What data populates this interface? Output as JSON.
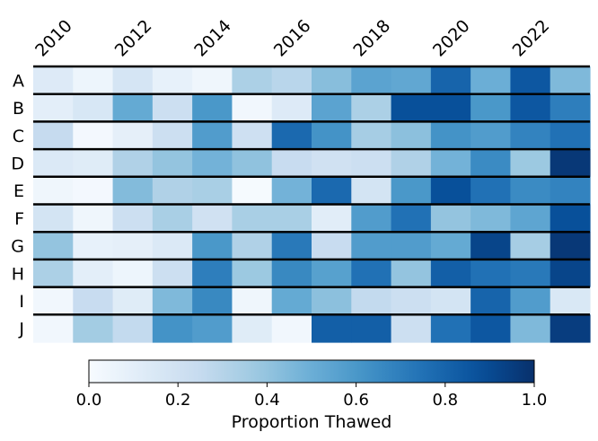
{
  "chart_data": {
    "type": "heatmap",
    "title": "",
    "x_tick_labels": [
      "2010",
      "2012",
      "2014",
      "2016",
      "2018",
      "2020",
      "2022"
    ],
    "x": [
      2010,
      2011,
      2012,
      2013,
      2014,
      2015,
      2016,
      2017,
      2018,
      2019,
      2020,
      2021,
      2022,
      2023
    ],
    "y": [
      "A",
      "B",
      "C",
      "D",
      "E",
      "F",
      "G",
      "H",
      "I",
      "J"
    ],
    "values": [
      [
        0.13,
        0.05,
        0.17,
        0.08,
        0.04,
        0.33,
        0.29,
        0.43,
        0.55,
        0.53,
        0.8,
        0.5,
        0.85,
        0.45
      ],
      [
        0.1,
        0.16,
        0.52,
        0.22,
        0.6,
        0.03,
        0.13,
        0.55,
        0.33,
        0.88,
        0.88,
        0.6,
        0.85,
        0.7
      ],
      [
        0.25,
        0.02,
        0.09,
        0.22,
        0.58,
        0.21,
        0.78,
        0.62,
        0.35,
        0.42,
        0.62,
        0.58,
        0.68,
        0.75
      ],
      [
        0.14,
        0.12,
        0.32,
        0.4,
        0.48,
        0.41,
        0.24,
        0.2,
        0.22,
        0.32,
        0.48,
        0.65,
        0.38,
        0.97
      ],
      [
        0.04,
        0.02,
        0.44,
        0.32,
        0.34,
        0.01,
        0.48,
        0.78,
        0.18,
        0.6,
        0.88,
        0.75,
        0.65,
        0.68
      ],
      [
        0.18,
        0.04,
        0.22,
        0.34,
        0.2,
        0.34,
        0.34,
        0.11,
        0.58,
        0.75,
        0.4,
        0.45,
        0.54,
        0.88
      ],
      [
        0.4,
        0.08,
        0.09,
        0.14,
        0.6,
        0.32,
        0.72,
        0.24,
        0.58,
        0.58,
        0.52,
        0.92,
        0.35,
        0.97
      ],
      [
        0.33,
        0.1,
        0.05,
        0.22,
        0.7,
        0.38,
        0.66,
        0.56,
        0.75,
        0.4,
        0.82,
        0.75,
        0.72,
        0.92
      ],
      [
        0.03,
        0.24,
        0.12,
        0.45,
        0.66,
        0.04,
        0.52,
        0.42,
        0.26,
        0.22,
        0.18,
        0.8,
        0.58,
        0.15
      ],
      [
        0.03,
        0.36,
        0.26,
        0.62,
        0.58,
        0.12,
        0.03,
        0.82,
        0.82,
        0.22,
        0.75,
        0.85,
        0.45,
        0.95
      ]
    ],
    "colorbar": {
      "label": "Proportion Thawed",
      "range": [
        0.0,
        1.0
      ],
      "ticks": [
        "0.0",
        "0.2",
        "0.4",
        "0.6",
        "0.8",
        "1.0"
      ],
      "colormap": "Blues"
    },
    "row_separators": true,
    "grid": false
  }
}
